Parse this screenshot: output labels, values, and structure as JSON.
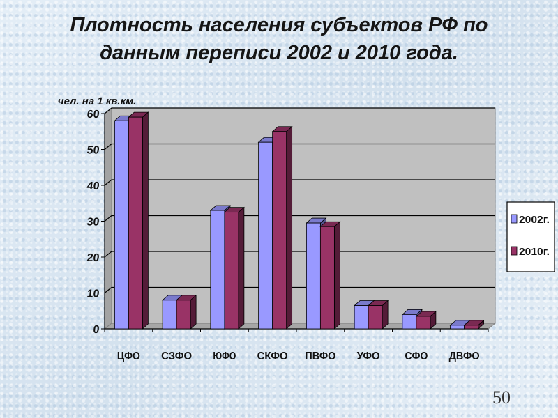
{
  "slide": {
    "title_line1": "Плотность населения субъектов РФ по",
    "title_line2": "данным переписи 2002 и 2010 года.",
    "page_number": "50"
  },
  "chart_data": {
    "type": "bar",
    "style": "3d-clustered",
    "title": "Плотность населения субъектов РФ по данным переписи 2002 и 2010 года.",
    "ylabel": "чел. на 1 кв.км.",
    "xlabel": "",
    "ylim": [
      0,
      60
    ],
    "yticks": [
      0,
      10,
      20,
      30,
      40,
      50,
      60
    ],
    "grid": true,
    "legend_position": "right",
    "categories": [
      "ЦФО",
      "СЗФО",
      "ЮФО",
      "СКФО",
      "ПВФО",
      "УФО",
      "СФО",
      "ДВФО"
    ],
    "series": [
      {
        "name": "2002г.",
        "color": "#9999ff",
        "values": [
          58,
          8,
          33,
          52,
          29.5,
          6.5,
          4,
          1
        ]
      },
      {
        "name": "2010г.",
        "color": "#993366",
        "values": [
          59,
          8,
          32.5,
          55,
          28.5,
          6.5,
          3.5,
          1
        ]
      }
    ],
    "colors": {
      "wall": "#c0c0c0",
      "floor": "#a6a6a6",
      "gridline": "#000000"
    }
  }
}
